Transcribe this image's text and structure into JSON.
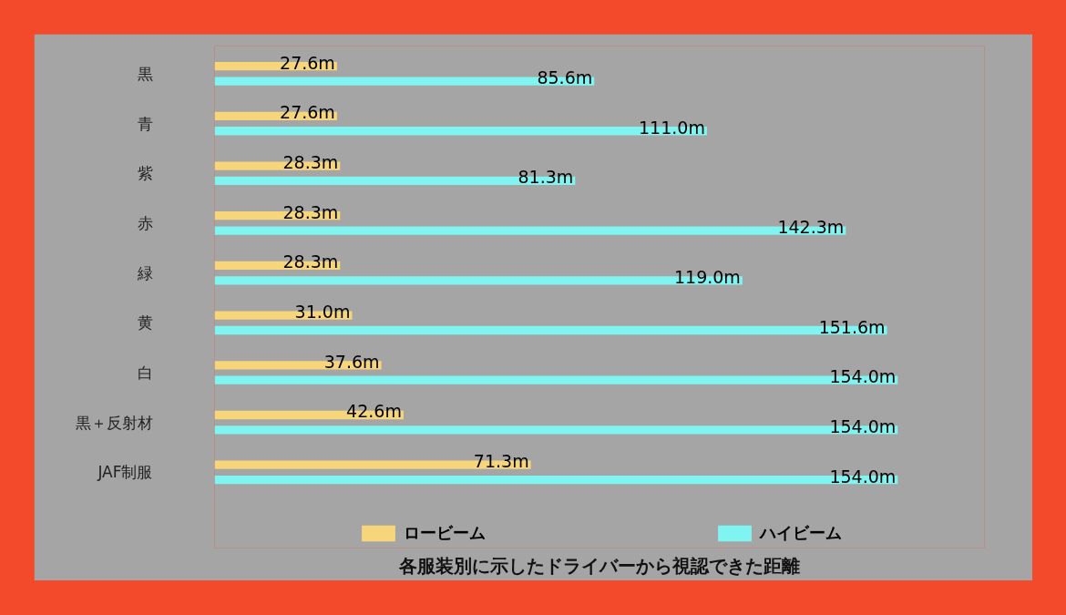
{
  "chart_data": {
    "type": "bar",
    "orientation": "horizontal",
    "title": "各服装別に示したドライバーから視認できた距離",
    "categories": [
      "黒",
      "青",
      "紫",
      "赤",
      "緑",
      "黄",
      "白",
      "黒＋反射材",
      "JAF制服"
    ],
    "series": [
      {
        "name": "ロービーム",
        "color": "#f7d57a",
        "values": [
          27.6,
          27.6,
          28.3,
          28.3,
          28.3,
          31.0,
          37.6,
          42.6,
          71.3
        ],
        "value_labels": [
          "27.6m",
          "27.6m",
          "28.3m",
          "28.3m",
          "28.3m",
          "31.0m",
          "37.6m",
          "42.6m",
          "71.3m"
        ]
      },
      {
        "name": "ハイビーム",
        "color": "#80f4f0",
        "values": [
          85.6,
          111.0,
          81.3,
          142.3,
          119.0,
          151.6,
          154.0,
          154.0,
          154.0
        ],
        "value_labels": [
          "85.6m",
          "111.0m",
          "81.3m",
          "142.3m",
          "119.0m",
          "151.6m",
          "154.0m",
          "154.0m",
          "154.0m"
        ]
      }
    ],
    "legend": "bottom",
    "grid": false
  }
}
